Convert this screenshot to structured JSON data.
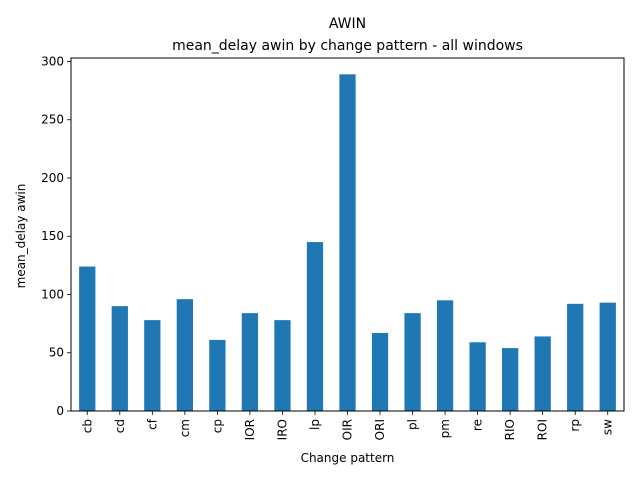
{
  "chart_data": {
    "type": "bar",
    "title": "AWIN",
    "subtitle": "mean_delay awin by change pattern - all windows",
    "xlabel": "Change pattern",
    "ylabel": "mean_delay awin",
    "categories": [
      "cb",
      "cd",
      "cf",
      "cm",
      "cp",
      "IOR",
      "IRO",
      "lp",
      "OIR",
      "ORI",
      "pl",
      "pm",
      "re",
      "RIO",
      "ROI",
      "rp",
      "sw"
    ],
    "values": [
      124,
      90,
      78,
      96,
      61,
      84,
      78,
      145,
      289,
      67,
      84,
      95,
      59,
      54,
      64,
      92,
      93
    ],
    "ylim": [
      0,
      303
    ],
    "yticks": [
      0,
      50,
      100,
      150,
      200,
      250,
      300
    ],
    "bar_color": "#1f77b4",
    "grid": false,
    "legend": "none"
  }
}
